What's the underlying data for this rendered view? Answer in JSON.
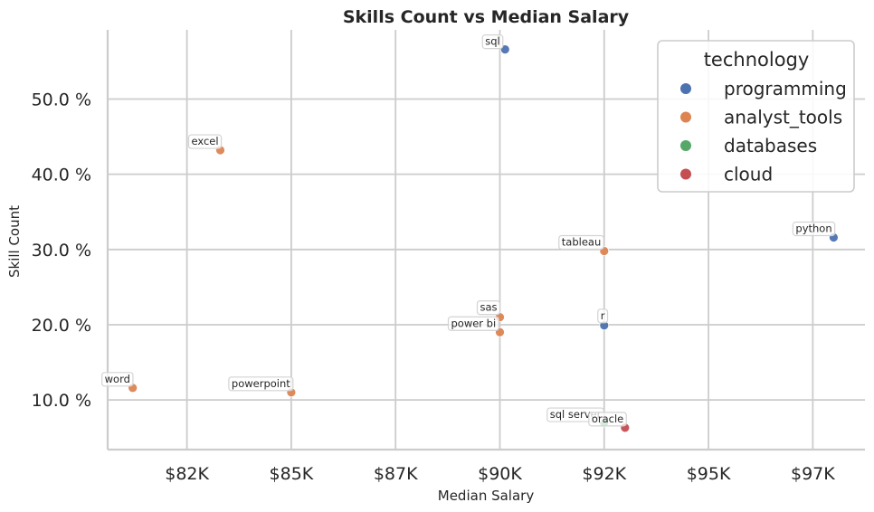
{
  "chart_data": {
    "type": "scatter",
    "title": "Skills Count vs Median Salary",
    "xlabel": "Median Salary",
    "ylabel": "Skill Count",
    "xlim": [
      80600,
      98750
    ],
    "ylim": [
      3.4,
      59.2
    ],
    "x_ticks": [
      82500,
      85000,
      87500,
      90000,
      92500,
      95000,
      97500
    ],
    "x_tick_labels": [
      "$82K",
      "$85K",
      "$87K",
      "$90K",
      "$92K",
      "$95K",
      "$97K"
    ],
    "y_ticks": [
      10,
      20,
      30,
      40,
      50
    ],
    "y_tick_labels": [
      "10.0 %",
      "20.0 %",
      "30.0 %",
      "40.0 %",
      "50.0 %"
    ],
    "grid": true,
    "legend": {
      "title": "technology",
      "placement": "top-right",
      "entries": [
        {
          "name": "programming",
          "color": "#4c72b0"
        },
        {
          "name": "analyst_tools",
          "color": "#dd8452"
        },
        {
          "name": "databases",
          "color": "#55a868"
        },
        {
          "name": "cloud",
          "color": "#c44e52"
        }
      ]
    },
    "points": [
      {
        "skill": "sql",
        "x": 90125,
        "y": 56.6,
        "technology": "programming"
      },
      {
        "skill": "excel",
        "x": 83300,
        "y": 43.2,
        "technology": "analyst_tools"
      },
      {
        "skill": "python",
        "x": 98000,
        "y": 31.6,
        "technology": "programming"
      },
      {
        "skill": "tableau",
        "x": 92500,
        "y": 29.8,
        "technology": "analyst_tools"
      },
      {
        "skill": "sas",
        "x": 90000,
        "y": 21.0,
        "technology": "analyst_tools"
      },
      {
        "skill": "r",
        "x": 92500,
        "y": 19.9,
        "technology": "programming"
      },
      {
        "skill": "power bi",
        "x": 90000,
        "y": 19.0,
        "technology": "analyst_tools"
      },
      {
        "skill": "word",
        "x": 81200,
        "y": 11.6,
        "technology": "analyst_tools"
      },
      {
        "skill": "powerpoint",
        "x": 85000,
        "y": 11.0,
        "technology": "analyst_tools"
      },
      {
        "skill": "sql server",
        "x": 92500,
        "y": 7.0,
        "technology": "databases"
      },
      {
        "skill": "oracle",
        "x": 93000,
        "y": 6.3,
        "technology": "cloud"
      }
    ]
  }
}
